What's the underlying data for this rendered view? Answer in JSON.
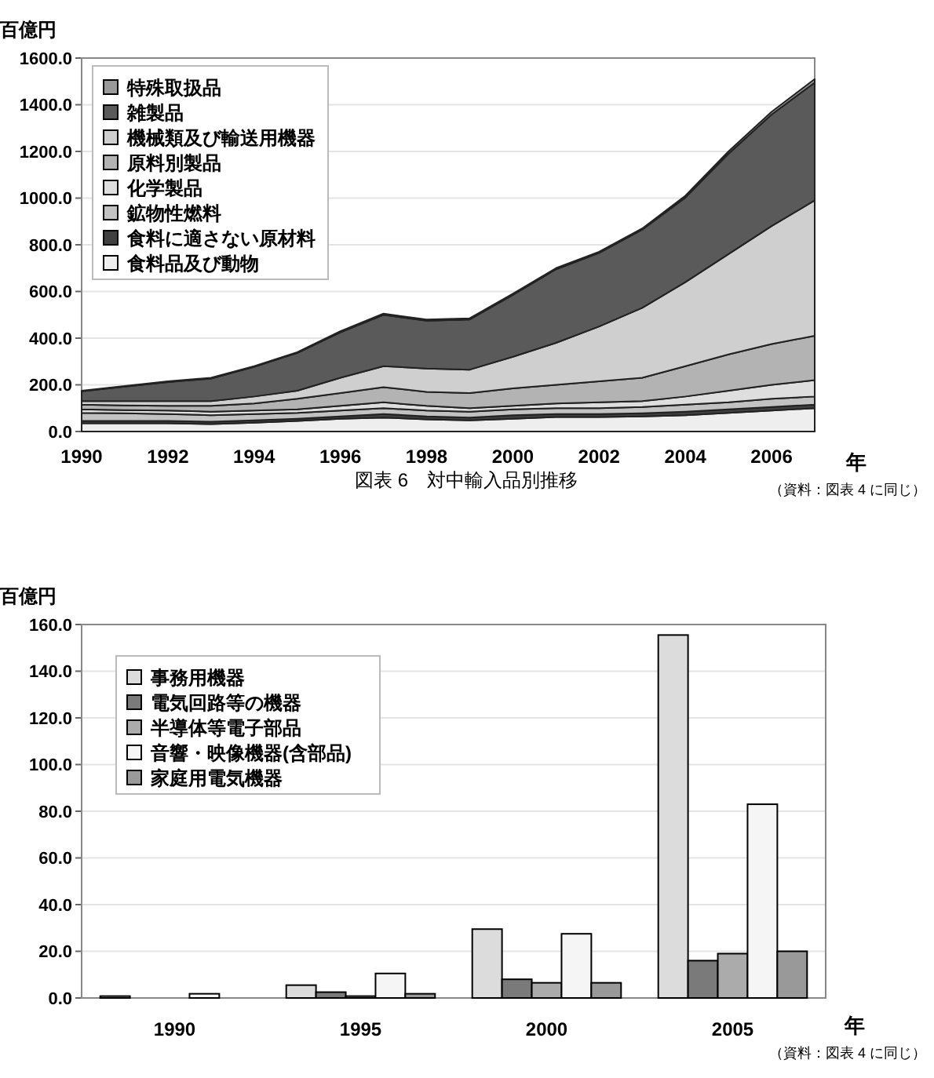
{
  "chart_data": [
    {
      "type": "area",
      "stacked": true,
      "title": "図表 6　対中輸入品別推移",
      "ylabel": "百億円",
      "xlabel": "年",
      "annotations": [
        "（資料：図表 4 に同じ）"
      ],
      "x": [
        1990,
        1991,
        1992,
        1993,
        1994,
        1995,
        1996,
        1997,
        1998,
        1999,
        2000,
        2001,
        2002,
        2003,
        2004,
        2005,
        2006,
        2007
      ],
      "xlim": [
        1990,
        2007
      ],
      "xticks": [
        1990,
        1992,
        1994,
        1996,
        1998,
        2000,
        2002,
        2004,
        2006
      ],
      "ylim": [
        0,
        1600
      ],
      "yticks": [
        {
          "value": 0,
          "label": "0.0"
        },
        {
          "value": 200,
          "label": "200.0"
        },
        {
          "value": 400,
          "label": "400.0"
        },
        {
          "value": 600,
          "label": "600.0"
        },
        {
          "value": 800,
          "label": "800.0"
        },
        {
          "value": 1000,
          "label": "1000.0"
        },
        {
          "value": 1200,
          "label": "1200.0"
        },
        {
          "value": 1400,
          "label": "1400.0"
        },
        {
          "value": 1600,
          "label": "1600.0"
        }
      ],
      "grid": "y",
      "legend": "top left",
      "series": [
        {
          "name": "食料品及び動物",
          "color": "#eeeeee",
          "values": [
            35,
            35,
            35,
            32,
            38,
            45,
            55,
            60,
            52,
            48,
            55,
            62,
            62,
            65,
            70,
            80,
            90,
            100
          ]
        },
        {
          "name": "食料に適さない原材料",
          "color": "#404040",
          "values": [
            10,
            10,
            10,
            10,
            10,
            10,
            10,
            15,
            13,
            12,
            15,
            13,
            13,
            13,
            15,
            15,
            15,
            15
          ]
        },
        {
          "name": "鉱物性燃料",
          "color": "#c2c2c2",
          "values": [
            35,
            33,
            30,
            28,
            27,
            25,
            25,
            25,
            25,
            25,
            25,
            25,
            25,
            27,
            30,
            30,
            35,
            35
          ]
        },
        {
          "name": "化学製品",
          "color": "#dedede",
          "values": [
            15,
            14,
            15,
            15,
            15,
            15,
            20,
            25,
            20,
            15,
            15,
            20,
            25,
            25,
            35,
            50,
            60,
            70
          ]
        },
        {
          "name": "原料別製品",
          "color": "#b3b3b3",
          "values": [
            20,
            20,
            20,
            25,
            30,
            45,
            55,
            65,
            60,
            65,
            75,
            80,
            90,
            100,
            130,
            155,
            175,
            190
          ]
        },
        {
          "name": "機械類及び輸送用機器",
          "color": "#cfcfcf",
          "values": [
            15,
            18,
            20,
            20,
            30,
            35,
            65,
            90,
            100,
            100,
            135,
            180,
            235,
            300,
            360,
            430,
            505,
            580
          ]
        },
        {
          "name": "雑製品",
          "color": "#5a5a5a",
          "values": [
            42,
            62,
            82,
            97,
            127,
            162,
            195,
            220,
            205,
            215,
            265,
            315,
            315,
            335,
            362,
            430,
            478,
            505
          ]
        },
        {
          "name": "特殊取扱品",
          "color": "#999999",
          "values": [
            3,
            3,
            3,
            3,
            3,
            3,
            5,
            5,
            5,
            5,
            5,
            5,
            5,
            5,
            8,
            10,
            12,
            15
          ]
        }
      ]
    },
    {
      "type": "bar",
      "ylabel": "百億円",
      "xlabel": "年",
      "annotations": [
        "（資料：図表 4 に同じ）"
      ],
      "categories": [
        "1990",
        "1995",
        "2000",
        "2005"
      ],
      "ylim": [
        0,
        160
      ],
      "yticks": [
        {
          "value": 0,
          "label": "0.0"
        },
        {
          "value": 20,
          "label": "20.0"
        },
        {
          "value": 40,
          "label": "40.0"
        },
        {
          "value": 60,
          "label": "60.0"
        },
        {
          "value": 80,
          "label": "80.0"
        },
        {
          "value": 100,
          "label": "100.0"
        },
        {
          "value": 120,
          "label": "120.0"
        },
        {
          "value": 140,
          "label": "140.0"
        },
        {
          "value": 160,
          "label": "160.0"
        }
      ],
      "grid": "y",
      "legend": "top left",
      "series": [
        {
          "name": "事務用機器",
          "color": "#dcdcdc",
          "values": [
            0.8,
            5.5,
            29.5,
            155.5
          ]
        },
        {
          "name": "電気回路等の機器",
          "color": "#7a7a7a",
          "values": [
            0,
            2.5,
            8,
            16
          ]
        },
        {
          "name": "半導体等電子部品",
          "color": "#ababab",
          "values": [
            0,
            0.8,
            6.5,
            19
          ]
        },
        {
          "name": "音響・映像機器(含部品)",
          "color": "#f5f5f5",
          "values": [
            1.8,
            10.5,
            27.5,
            83
          ]
        },
        {
          "name": "家庭用電気機器",
          "color": "#999999",
          "values": [
            0,
            1.8,
            6.5,
            20
          ]
        }
      ]
    }
  ]
}
